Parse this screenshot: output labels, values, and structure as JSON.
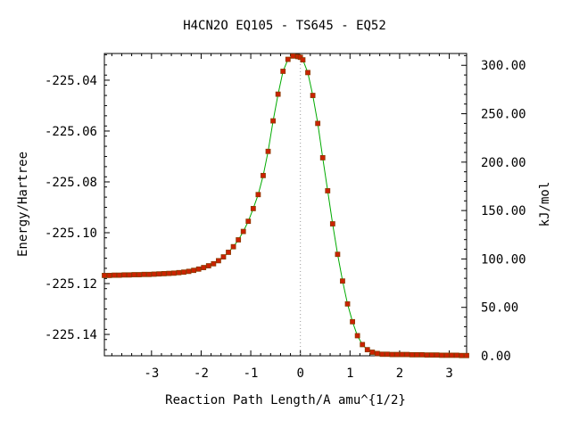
{
  "chart_data": {
    "type": "line",
    "title": "H4CN2O   EQ105 - TS645 - EQ52",
    "xlabel": "Reaction Path Length/A amu^{1/2}",
    "ylabel": "Energy/Hartree",
    "y2label": "kJ/mol",
    "xlim": [
      -3.95,
      3.35
    ],
    "ylim": [
      -225.1484,
      -225.0295
    ],
    "y2lim": [
      0,
      312.2
    ],
    "x_ticks": [
      -3,
      -2,
      -1,
      0,
      1,
      2,
      3
    ],
    "y_ticks": [
      -225.04,
      -225.06,
      -225.08,
      -225.1,
      -225.12,
      -225.14
    ],
    "y_tick_labels": [
      "-225.04",
      "-225.06",
      "-225.08",
      "-225.10",
      "-225.12",
      "-225.14"
    ],
    "y2_ticks": [
      0,
      50,
      100,
      150,
      200,
      250,
      300
    ],
    "y2_tick_labels": [
      "0.00",
      "50.00",
      "100.00",
      "150.00",
      "200.00",
      "250.00",
      "300.00"
    ],
    "ts_x": 0.0,
    "grid": false,
    "colors": {
      "line": "#00aa00",
      "marker": "#cc2200",
      "marker_edge": "#8a3a00",
      "ts_line": "#999999"
    },
    "series": [
      {
        "x": [
          -3.95,
          -3.85,
          -3.75,
          -3.65,
          -3.55,
          -3.45,
          -3.35,
          -3.25,
          -3.15,
          -3.05,
          -2.95,
          -2.85,
          -2.75,
          -2.65,
          -2.55,
          -2.45,
          -2.35,
          -2.25,
          -2.15,
          -2.05,
          -1.95,
          -1.85,
          -1.75,
          -1.65,
          -1.55,
          -1.45,
          -1.35,
          -1.25,
          -1.15,
          -1.05,
          -0.95,
          -0.85,
          -0.75,
          -0.65,
          -0.55,
          -0.45,
          -0.35,
          -0.25,
          -0.15,
          -0.05,
          0.0,
          0.05,
          0.15,
          0.25,
          0.35,
          0.45,
          0.55,
          0.65,
          0.75,
          0.85,
          0.95,
          1.05,
          1.15,
          1.25,
          1.35,
          1.45,
          1.55,
          1.65,
          1.75,
          1.85,
          1.95,
          2.05,
          2.15,
          2.25,
          2.35,
          2.45,
          2.55,
          2.65,
          2.75,
          2.85,
          2.95,
          3.05,
          3.15,
          3.25,
          3.35
        ],
        "y": [
          -225.1168,
          -225.1168,
          -225.1167,
          -225.1167,
          -225.1166,
          -225.1166,
          -225.1165,
          -225.1165,
          -225.1164,
          -225.1164,
          -225.1163,
          -225.1162,
          -225.1161,
          -225.116,
          -225.1159,
          -225.1157,
          -225.1155,
          -225.1152,
          -225.1148,
          -225.1143,
          -225.1137,
          -225.113,
          -225.1122,
          -225.111,
          -225.1095,
          -225.1077,
          -225.1055,
          -225.1028,
          -225.0995,
          -225.0955,
          -225.0905,
          -225.085,
          -225.0775,
          -225.068,
          -225.056,
          -225.0455,
          -225.0365,
          -225.0318,
          -225.0305,
          -225.0307,
          -225.031,
          -225.032,
          -225.037,
          -225.046,
          -225.057,
          -225.0705,
          -225.0835,
          -225.0965,
          -225.1085,
          -225.119,
          -225.128,
          -225.135,
          -225.1405,
          -225.144,
          -225.146,
          -225.147,
          -225.1475,
          -225.1478,
          -225.1478,
          -225.1479,
          -225.1479,
          -225.1479,
          -225.1479,
          -225.148,
          -225.148,
          -225.148,
          -225.1481,
          -225.1481,
          -225.1481,
          -225.1482,
          -225.1482,
          -225.1482,
          -225.1482,
          -225.1483,
          -225.1483
        ]
      }
    ]
  }
}
